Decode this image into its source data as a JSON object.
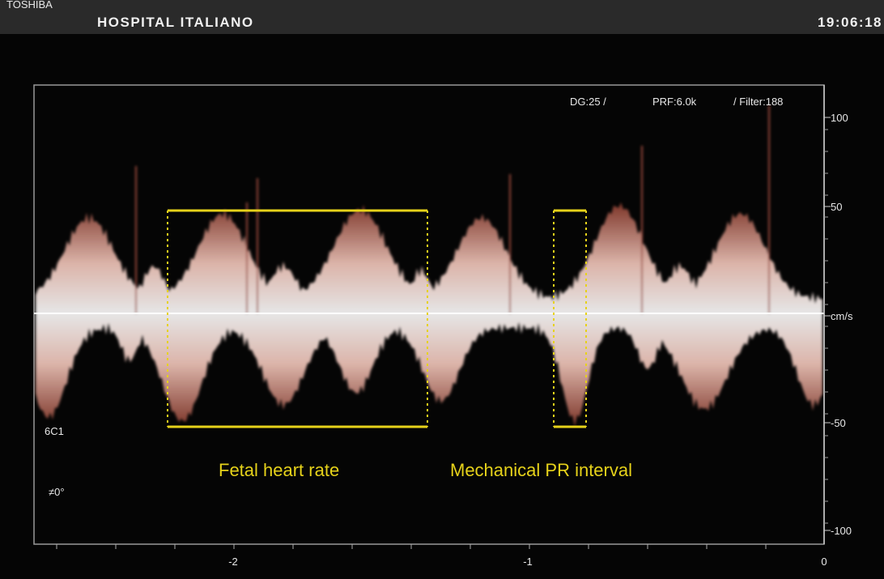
{
  "header": {
    "brand": "TOSHIBA",
    "site": "HOSPITAL ITALIANO",
    "time": "19:06:18"
  },
  "settings": {
    "gain": "DG:25 /",
    "prf": "PRF:6.0k",
    "filter": "/ Filter:188"
  },
  "scale": {
    "ticks": [
      "100",
      "50",
      "cm/s",
      "-50",
      "-100"
    ]
  },
  "time_axis": {
    "ticks": [
      "-2",
      "-1",
      "0"
    ]
  },
  "probe": "6C1",
  "angle": "≠0°",
  "annotations": [
    "Fetal heart rate",
    "Mechanical PR interval"
  ]
}
